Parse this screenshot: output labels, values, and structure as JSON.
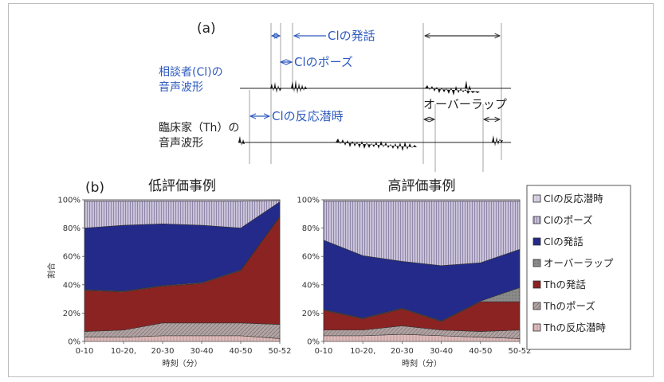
{
  "diagram": {
    "panel_label": "(a)",
    "client_wave_label": [
      "相談者(Cl)の",
      "音声波形"
    ],
    "therapist_wave_label": [
      "臨床家（Th）の",
      "音声波形"
    ],
    "client_speech": "Clの発話",
    "client_pause": "Clのポーズ",
    "client_latency": "Clの反応潜時",
    "overlap": "オーバーラップ"
  },
  "colors": {
    "cl_latency": "#d6cde0",
    "cl_pause": "#b8b2c8",
    "cl_speech": "#232a8a",
    "overlap": "#8a8a8a",
    "th_speech": "#8b2323",
    "th_pause": "#9a9a9a",
    "th_latency": "#c9a0a0",
    "diagram_blue": "#2f5bbf"
  },
  "legend": [
    {
      "label": "Clの反応潜時",
      "color_key": "cl_latency"
    },
    {
      "label": "Clのポーズ",
      "color_key": "cl_pause"
    },
    {
      "label": "Clの発話",
      "color_key": "cl_speech"
    },
    {
      "label": "オーバーラップ",
      "color_key": "overlap"
    },
    {
      "label": "Thの発話",
      "color_key": "th_speech"
    },
    {
      "label": "Thのポーズ",
      "color_key": "th_pause"
    },
    {
      "label": "Thの反応潜時",
      "color_key": "th_latency"
    }
  ],
  "panel_b_label": "(b)",
  "chart_data": [
    {
      "type": "area",
      "stacked": true,
      "title": "低評価事例",
      "xlabel": "時刻（分）",
      "ylabel": "割合",
      "ylim": [
        0,
        100
      ],
      "yticks": [
        "0%",
        "20%",
        "40%",
        "60%",
        "80%",
        "100%"
      ],
      "categories": [
        "0-10",
        "10-20,",
        "20-30",
        "30-40",
        "40-50",
        "50-52"
      ],
      "series": [
        {
          "name": "Thの反応潜時",
          "values": [
            3,
            3,
            4,
            4,
            4,
            2
          ]
        },
        {
          "name": "Thのポーズ",
          "values": [
            4,
            5,
            9,
            9,
            9,
            10
          ]
        },
        {
          "name": "Thの発話",
          "values": [
            29,
            27,
            26,
            28,
            37,
            76
          ]
        },
        {
          "name": "オーバーラップ",
          "values": [
            0.5,
            0.5,
            0.5,
            0.5,
            0.5,
            0.5
          ]
        },
        {
          "name": "Clの発話",
          "values": [
            43.5,
            46.5,
            43.5,
            40.5,
            29.5,
            10
          ]
        },
        {
          "name": "Clのポーズ",
          "values": [
            19,
            17,
            16,
            17,
            19,
            1
          ]
        },
        {
          "name": "Clの反応潜時",
          "values": [
            1,
            1,
            1,
            1,
            1,
            0.5
          ]
        }
      ]
    },
    {
      "type": "area",
      "stacked": true,
      "title": "高評価事例",
      "xlabel": "時刻（分）",
      "ylabel": "",
      "ylim": [
        0,
        100
      ],
      "yticks": [
        "0%",
        "20%",
        "40%",
        "60%",
        "80%",
        "100%"
      ],
      "categories": [
        "0-10",
        "10-20,",
        "20-30",
        "30-40",
        "40-50",
        "50-52"
      ],
      "series": [
        {
          "name": "Thの反応潜時",
          "values": [
            4,
            4,
            5,
            4,
            3,
            2
          ]
        },
        {
          "name": "Thのポーズ",
          "values": [
            4,
            4,
            6,
            4,
            4,
            6
          ]
        },
        {
          "name": "Thの発話",
          "values": [
            14,
            8,
            12,
            6,
            21,
            20
          ]
        },
        {
          "name": "オーバーラップ",
          "values": [
            0.5,
            0.5,
            0.5,
            0.5,
            0.5,
            10
          ]
        },
        {
          "name": "Clの発話",
          "values": [
            49,
            44,
            33,
            39,
            27,
            27
          ]
        },
        {
          "name": "Clのポーズ",
          "values": [
            27.5,
            38.5,
            42.5,
            45.5,
            43.5,
            34
          ]
        },
        {
          "name": "Clの反応潜時",
          "values": [
            1,
            1,
            1,
            1,
            1,
            1
          ]
        }
      ]
    }
  ]
}
